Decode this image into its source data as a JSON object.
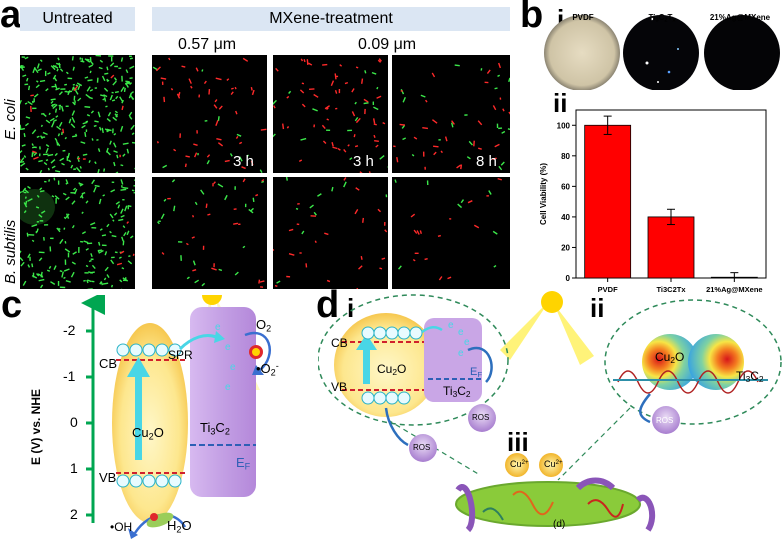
{
  "panel_a": {
    "letter": "a",
    "header_untreated": "Untreated",
    "header_treatment": "MXene-treatment",
    "size_label_1": "0.57 μm",
    "size_label_2": "0.09 μm",
    "row_labels": [
      "E. coli",
      "B. subtilis"
    ],
    "time_labels": [
      "3 h",
      "3 h",
      "8 h"
    ]
  },
  "panel_b": {
    "letter": "b",
    "sub_i": "i",
    "sub_ii": "ii",
    "dish_labels": [
      "PVDF",
      "Ti3C2Tx",
      "21%Ag@MXene"
    ],
    "chart_data": {
      "type": "bar",
      "categories": [
        "PVDF",
        "Ti3C2Tx",
        "21%Ag@MXene"
      ],
      "values": [
        100,
        40,
        0.5
      ],
      "errors": [
        6,
        5,
        3
      ],
      "ylabel": "Cell Viability (%)",
      "ylim": [
        0,
        110
      ],
      "yticks": [
        0,
        20,
        40,
        60,
        80,
        100
      ],
      "bar_color": "#ff0000"
    }
  },
  "panel_c": {
    "letter": "c",
    "axis_label": "E (V) vs. NHE",
    "ticks": [
      "-2",
      "-1",
      "0",
      "1",
      "2"
    ],
    "cb": "CB",
    "vb": "VB",
    "spr": "SPR",
    "cu2o": "Cu2O",
    "ti3c2": "Ti3C2",
    "ef": "EF",
    "o2": "O2",
    "o2_radical": "•O2⁻",
    "oh_radical": "•OH",
    "h2o": "H2O",
    "electron": "e⁻",
    "hole": "h⁺"
  },
  "panel_d": {
    "letter": "d",
    "sub_i": "i",
    "sub_ii": "ii",
    "sub_iii": "iii",
    "cb": "CB",
    "vb": "VB",
    "cu2o": "Cu2O",
    "ti3c2": "Ti3C2",
    "ef": "EF",
    "ros": "ROS",
    "cu2plus": "Cu2+",
    "bacteria_label": "(d)"
  },
  "colors": {
    "header_bg": "#dbe6f3",
    "axis_green": "#00a651",
    "cu2o_yellow": "#fce58a",
    "ti3c2_purple": "#c9a6e6",
    "ros_purple": "#c5a3de",
    "arrow_blue": "#49d6e6"
  }
}
